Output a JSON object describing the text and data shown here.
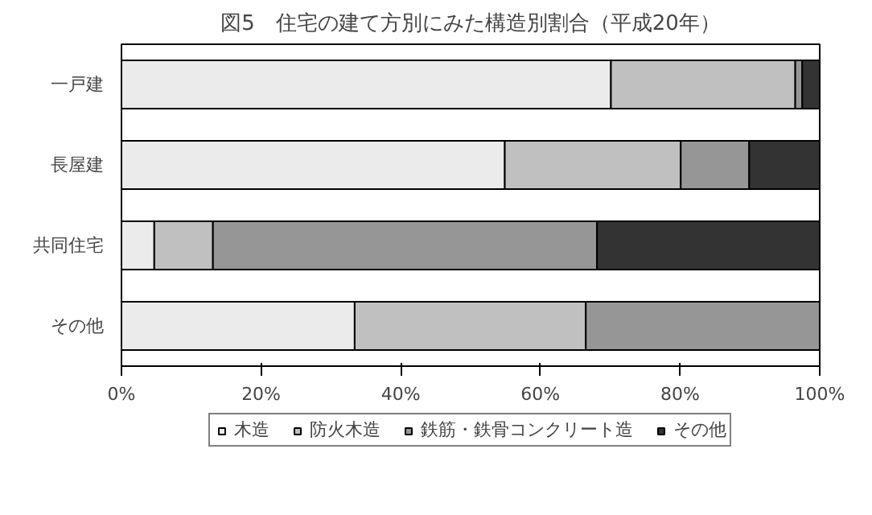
{
  "chart_data": {
    "type": "bar",
    "orientation": "horizontal",
    "stacked": true,
    "title": "図5　住宅の建て方別にみた構造別割合（平成20年）",
    "categories": [
      "一戸建",
      "長屋建",
      "共同住宅",
      "その他"
    ],
    "series": [
      {
        "name": "木造",
        "color": "#ebebeb",
        "values": [
          70.1,
          54.9,
          4.7,
          33.4
        ]
      },
      {
        "name": "防火木造",
        "color": "#c0c0c0",
        "values": [
          26.4,
          25.2,
          8.4,
          33.1
        ]
      },
      {
        "name": "鉄筋・鉄骨コンクリート造",
        "color": "#969696",
        "values": [
          1.0,
          9.8,
          55.0,
          33.5
        ]
      },
      {
        "name": "その他",
        "color": "#333333",
        "values": [
          2.5,
          10.1,
          31.9,
          null
        ]
      }
    ],
    "xlim": [
      0,
      100
    ],
    "xticks": [
      {
        "value": 0,
        "label": "0%"
      },
      {
        "value": 20,
        "label": "20%"
      },
      {
        "value": 40,
        "label": "40%"
      },
      {
        "value": 60,
        "label": "60%"
      },
      {
        "value": 80,
        "label": "80%"
      },
      {
        "value": 100,
        "label": "100%"
      }
    ],
    "grid": false,
    "legend": "bottom"
  }
}
